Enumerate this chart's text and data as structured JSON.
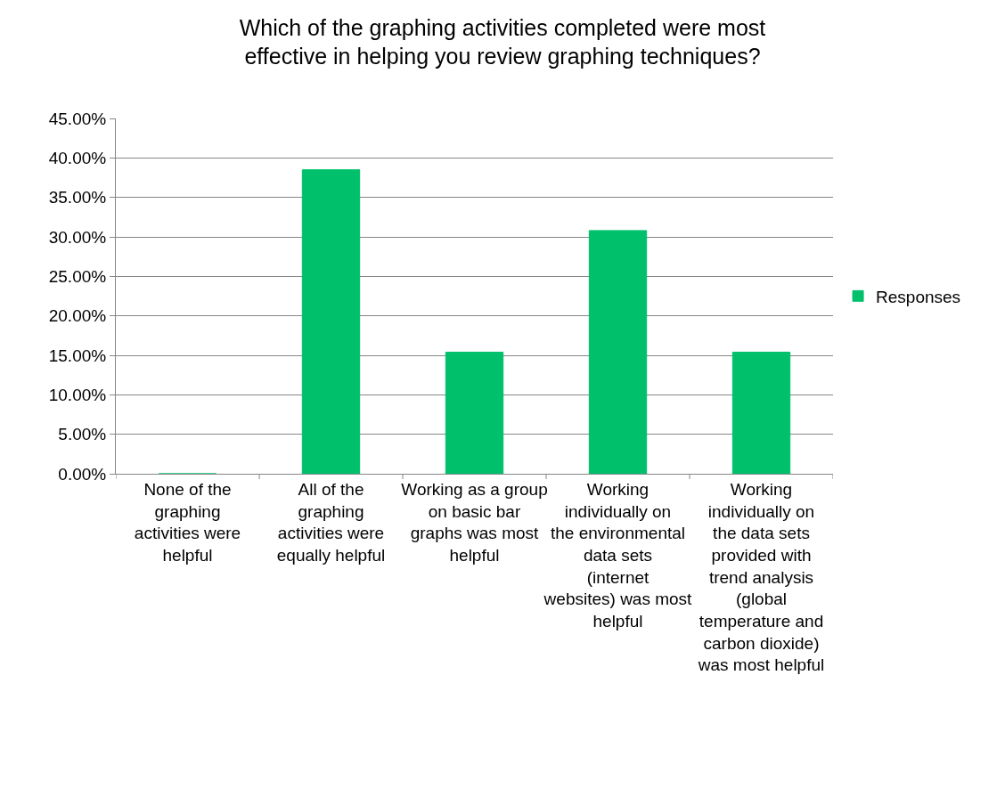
{
  "chart_data": {
    "type": "bar",
    "title": "Which of the graphing activities completed were most effective in helping you review graphing techniques?",
    "categories": [
      "None of the graphing activities were helpful",
      "All of the graphing activities were equally helpful",
      "Working as a group on basic bar graphs was most helpful",
      "Working individually on the environmental data sets (internet websites) was most helpful",
      "Working individually on the data sets provided with trend analysis (global temperature and carbon dioxide) was most helpful"
    ],
    "series": [
      {
        "name": "Responses",
        "color": "#00c06c",
        "values": [
          0,
          38.5,
          15.4,
          30.8,
          15.4
        ]
      }
    ],
    "ylim": [
      0,
      45
    ],
    "yticks": [
      {
        "value": 0,
        "label": "0.00%"
      },
      {
        "value": 5,
        "label": "5.00%"
      },
      {
        "value": 10,
        "label": "10.00%"
      },
      {
        "value": 15,
        "label": "15.00%"
      },
      {
        "value": 20,
        "label": "20.00%"
      },
      {
        "value": 25,
        "label": "25.00%"
      },
      {
        "value": 30,
        "label": "30.00%"
      },
      {
        "value": 35,
        "label": "35.00%"
      },
      {
        "value": 40,
        "label": "40.00%"
      },
      {
        "value": 45,
        "label": "45.00%"
      }
    ],
    "grid": "y",
    "legend": "right"
  }
}
